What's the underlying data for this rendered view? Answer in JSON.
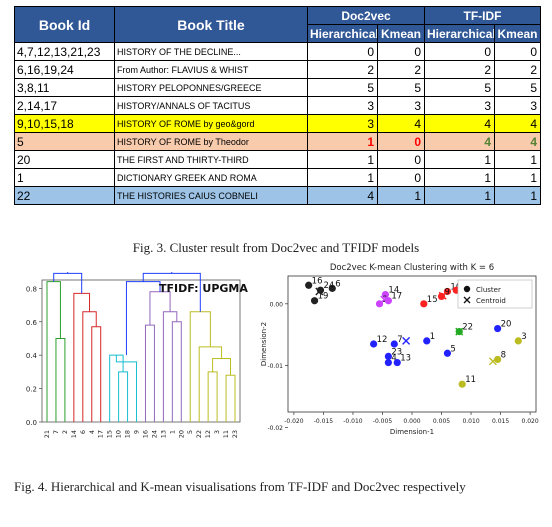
{
  "table": {
    "headers": {
      "book_id": "Book Id",
      "book_title": "Book Title",
      "doc2vec": "Doc2vec",
      "tfidf": "TF-IDF",
      "hierarchical": "Hierarchical",
      "kmean": "Kmean"
    },
    "rows": [
      {
        "id": "4,7,12,13,21,23",
        "title": "HISTORY OF THE DECLINE...",
        "d2v_h": "0",
        "d2v_k": "0",
        "tf_h": "0",
        "tf_k": "0"
      },
      {
        "id": "6,16,19,24",
        "title": "From Author: FLAVIUS & WHIST",
        "d2v_h": "2",
        "d2v_k": "2",
        "tf_h": "2",
        "tf_k": "2"
      },
      {
        "id": "3,8,11",
        "title": "HISTORY PELOPONNES/GREECE",
        "d2v_h": "5",
        "d2v_k": "5",
        "tf_h": "5",
        "tf_k": "5"
      },
      {
        "id": "2,14,17",
        "title": "HISTORY/ANNALS OF TACITUS",
        "d2v_h": "3",
        "d2v_k": "3",
        "tf_h": "3",
        "tf_k": "3"
      },
      {
        "id": "9,10,15,18",
        "title": "HISTORY OF ROME by geo&gord",
        "d2v_h": "3",
        "d2v_k": "4",
        "tf_h": "4",
        "tf_k": "4"
      },
      {
        "id": "5",
        "title": "HISTORY OF ROME by Theodor",
        "d2v_h": "1",
        "d2v_k": "0",
        "tf_h": "4",
        "tf_k": "4"
      },
      {
        "id": "20",
        "title": "THE FIRST AND THIRTY-THIRD",
        "d2v_h": "1",
        "d2v_k": "0",
        "tf_h": "1",
        "tf_k": "1"
      },
      {
        "id": "1",
        "title": "DICTIONARY GREEK AND ROMA",
        "d2v_h": "1",
        "d2v_k": "0",
        "tf_h": "1",
        "tf_k": "1"
      },
      {
        "id": "22",
        "title": "THE HISTORIES CAIUS COBNELI",
        "d2v_h": "4",
        "d2v_k": "1",
        "tf_h": "1",
        "tf_k": "1"
      }
    ]
  },
  "captions": {
    "fig3": "Fig. 3.   Cluster result from Doc2vec and TFIDF models",
    "fig4": "Fig. 4.   Hierarchical and K-mean visualisations from TF-IDF and Doc2vec respectively"
  },
  "chart_data": [
    {
      "type": "dendrogram",
      "title": "TFIDF: UPGMA",
      "ylim": [
        0,
        0.85
      ],
      "yticks": [
        "0.0",
        "0.2",
        "0.4",
        "0.6",
        "0.8"
      ],
      "leaves": [
        "21",
        "7",
        "2",
        "14",
        "6",
        "4",
        "17",
        "15",
        "10",
        "18",
        "9",
        "16",
        "24",
        "13",
        "1",
        "20",
        "5",
        "22",
        "12",
        "3",
        "11",
        "23"
      ],
      "colors": {
        "c1": "#2ca02c",
        "c2": "#d62728",
        "c3": "#17becf",
        "c4": "#9467bd",
        "c5": "#bcbd22",
        "link": "#1f3fff"
      }
    },
    {
      "type": "scatter",
      "title": "Doc2vec K-mean Clustering with K = 6",
      "xlabel": "Dimension-1",
      "ylabel": "Dimension-2",
      "xlim": [
        -0.021,
        0.021
      ],
      "ylim": [
        -0.0175,
        0.0045
      ],
      "xticks": [
        "-0.020",
        "-0.015",
        "-0.010",
        "-0.005",
        "0.000",
        "0.005",
        "0.010",
        "0.015",
        "0.020"
      ],
      "yticks": [
        "0.00",
        "-0.01",
        "-0.02"
      ],
      "legend": {
        "cluster": "Cluster",
        "centroid": "Centroid",
        "position": "top-right"
      },
      "points": [
        {
          "label": "16",
          "x": -0.0175,
          "y": 0.003,
          "color": "#222222"
        },
        {
          "label": "6",
          "x": -0.0135,
          "y": 0.0025,
          "color": "#222222"
        },
        {
          "label": "24",
          "x": -0.0155,
          "y": 0.0022,
          "color": "#222222"
        },
        {
          "label": "19",
          "x": -0.0165,
          "y": 0.0005,
          "color": "#222222"
        },
        {
          "label": "10",
          "x": 0.006,
          "y": 0.002,
          "color": "#ff2222"
        },
        {
          "label": "18",
          "x": 0.0075,
          "y": 0.0022,
          "color": "#ff2222"
        },
        {
          "label": "9",
          "x": 0.005,
          "y": 0.0012,
          "color": "#ff2222"
        },
        {
          "label": "15",
          "x": 0.002,
          "y": 0.0,
          "color": "#ff2222"
        },
        {
          "label": "14",
          "x": -0.0045,
          "y": 0.0015,
          "color": "#cc44ff"
        },
        {
          "label": "2",
          "x": -0.0055,
          "y": 0.0,
          "color": "#cc44ff"
        },
        {
          "label": "17",
          "x": -0.004,
          "y": 0.0005,
          "color": "#cc44ff"
        },
        {
          "label": "12",
          "x": -0.0065,
          "y": -0.0065,
          "color": "#2222ff"
        },
        {
          "label": "7",
          "x": -0.003,
          "y": -0.0065,
          "color": "#2222ff"
        },
        {
          "label": "23",
          "x": -0.004,
          "y": -0.0085,
          "color": "#2222ff"
        },
        {
          "label": "4",
          "x": -0.004,
          "y": -0.0095,
          "color": "#2222ff"
        },
        {
          "label": "13",
          "x": -0.0025,
          "y": -0.0095,
          "color": "#2222ff"
        },
        {
          "label": "1",
          "x": 0.0025,
          "y": -0.006,
          "color": "#2222ff"
        },
        {
          "label": "5",
          "x": 0.006,
          "y": -0.008,
          "color": "#2222ff"
        },
        {
          "label": "20",
          "x": 0.0145,
          "y": -0.004,
          "color": "#2222ff"
        },
        {
          "label": "22",
          "x": 0.008,
          "y": -0.0045,
          "color": "#22aa22"
        },
        {
          "label": "3",
          "x": 0.018,
          "y": -0.006,
          "color": "#bbbb22"
        },
        {
          "label": "8",
          "x": 0.0145,
          "y": -0.009,
          "color": "#bbbb22"
        },
        {
          "label": "11",
          "x": 0.0085,
          "y": -0.013,
          "color": "#bbbb22"
        }
      ],
      "centroids": [
        {
          "x": -0.0157,
          "y": 0.002,
          "color": "#222222"
        },
        {
          "x": 0.0052,
          "y": 0.0013,
          "color": "#ff2222"
        },
        {
          "x": -0.0047,
          "y": 0.0007,
          "color": "#cc44ff"
        },
        {
          "x": -0.001,
          "y": -0.006,
          "color": "#2222ff"
        },
        {
          "x": 0.008,
          "y": -0.0045,
          "color": "#22aa22"
        },
        {
          "x": 0.0137,
          "y": -0.0093,
          "color": "#bbbb22"
        }
      ]
    }
  ]
}
